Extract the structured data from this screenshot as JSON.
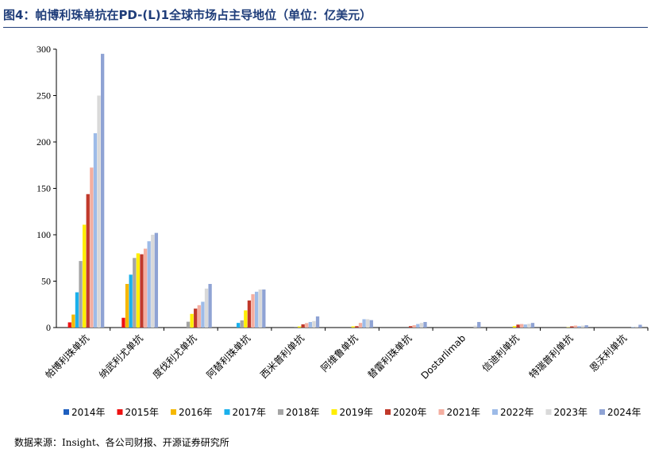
{
  "title": "图4：帕博利珠单抗在PD-(L)1全球市场占主导地位（单位：亿美元）",
  "source": "数据来源：Insight、各公司财报、开源证券研究所",
  "chart_data": {
    "type": "bar",
    "title": "图4：帕博利珠单抗在PD-(L)1全球市场占主导地位（单位：亿美元）",
    "xlabel": "",
    "ylabel": "",
    "ylim": [
      0,
      300
    ],
    "yticks": [
      0,
      50,
      100,
      150,
      200,
      250,
      300
    ],
    "grid": false,
    "legend_position": "bottom",
    "categories": [
      "帕博利珠单抗",
      "纳武利尤单抗",
      "度伐利尤单抗",
      "阿替利珠单抗",
      "西米普利单抗",
      "阿维鲁单抗",
      "替雷利珠单抗",
      "Dostarlimab",
      "信迪利单抗",
      "特瑞普利单抗",
      "恩沃利单抗"
    ],
    "series": [
      {
        "name": "2014年",
        "color": "#1f5fbf",
        "values": [
          0,
          0,
          0,
          0,
          0,
          0,
          0,
          0,
          0,
          0,
          0
        ]
      },
      {
        "name": "2015年",
        "color": "#ee1111",
        "values": [
          5.6,
          10.5,
          0,
          0,
          0,
          0,
          0,
          0,
          0,
          0,
          0
        ]
      },
      {
        "name": "2016年",
        "color": "#f5b800",
        "values": [
          14,
          47,
          0,
          0,
          0,
          0,
          0,
          0,
          0,
          0,
          0
        ]
      },
      {
        "name": "2017年",
        "color": "#1ab0ec",
        "values": [
          38,
          57,
          0,
          5,
          0,
          0,
          0,
          0,
          0,
          0,
          0
        ]
      },
      {
        "name": "2018年",
        "color": "#a5a5a5",
        "values": [
          71.7,
          75,
          6.3,
          7.7,
          0.1,
          0,
          0,
          0,
          0,
          0,
          0
        ]
      },
      {
        "name": "2019年",
        "color": "#ffee00",
        "values": [
          110.8,
          80,
          14.7,
          18.5,
          1.2,
          1.3,
          0,
          0,
          1.5,
          0.3,
          0
        ]
      },
      {
        "name": "2020年",
        "color": "#c0392b",
        "values": [
          143.8,
          79,
          20.4,
          29.2,
          3.5,
          1.5,
          1.5,
          0,
          3.2,
          1.3,
          0
        ]
      },
      {
        "name": "2021年",
        "color": "#f4aea0",
        "values": [
          172.4,
          85,
          24.1,
          36.0,
          4.8,
          5.0,
          2.5,
          0,
          3.8,
          2.1,
          0
        ]
      },
      {
        "name": "2022年",
        "color": "#9dbbe8",
        "values": [
          209.4,
          93,
          27.8,
          38.6,
          6.0,
          9.0,
          3.8,
          0,
          3.3,
          1.5,
          0.6
        ]
      },
      {
        "name": "2023年",
        "color": "#d9d9d9",
        "values": [
          250,
          100,
          42,
          41,
          7,
          9,
          5,
          2,
          4,
          2,
          1
        ]
      },
      {
        "name": "2024年",
        "color": "#8fa3d4",
        "values": [
          295,
          102,
          47,
          41,
          12,
          8,
          6,
          6,
          5,
          2.5,
          3
        ]
      }
    ]
  }
}
